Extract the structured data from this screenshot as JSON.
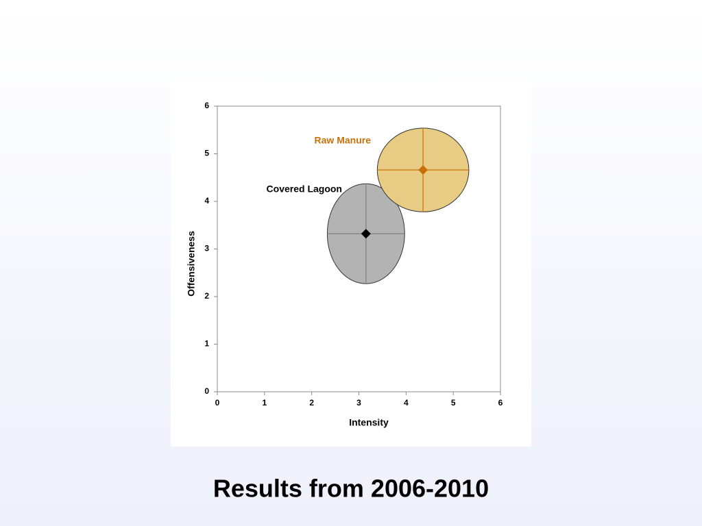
{
  "chart_data": {
    "type": "scatter-ellipse",
    "title": "Results from 2006-2010",
    "x_label": "Intensity",
    "y_label": "Offensiveness",
    "xlim": [
      0,
      6
    ],
    "ylim": [
      0,
      6
    ],
    "xticks": [
      0,
      1,
      2,
      3,
      4,
      5,
      6
    ],
    "yticks": [
      0,
      1,
      2,
      3,
      4,
      5,
      6
    ],
    "series": [
      {
        "name": "Covered Lagoon",
        "color": "#000000",
        "fill": "#b3b3b3",
        "line": "#808080",
        "x": [
          3.15
        ],
        "values": [
          3.32
        ],
        "xerr": [
          0.82
        ],
        "yerr": [
          1.05
        ]
      },
      {
        "name": "Raw Manure",
        "color": "#c8700a",
        "fill": "#e8cc84",
        "line": "#c8700a",
        "x": [
          4.36
        ],
        "values": [
          4.66
        ],
        "xerr": [
          0.97
        ],
        "yerr": [
          0.88
        ]
      }
    ]
  }
}
